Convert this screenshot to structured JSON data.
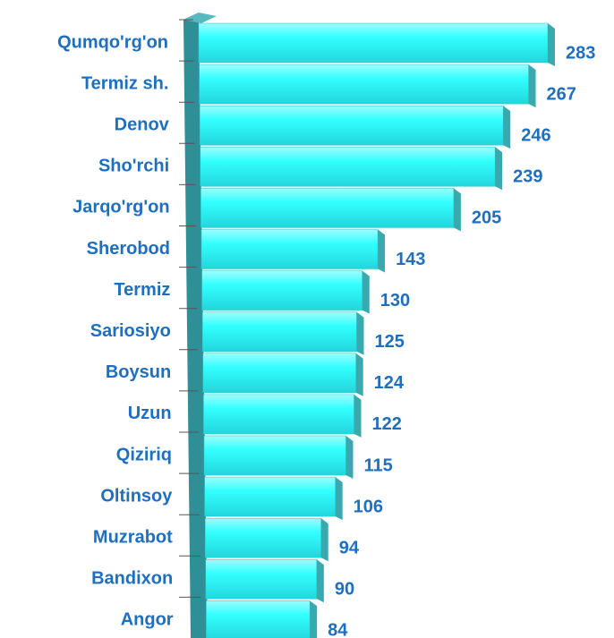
{
  "chart_data": {
    "type": "bar",
    "orientation": "horizontal",
    "categories": [
      "Qumqo'rg'on",
      "Termiz sh.",
      "Denov",
      "Sho'rchi",
      "Jarqo'rg'on",
      "Sherobod",
      "Termiz",
      "Sariosiyo",
      "Boysun",
      "Uzun",
      "Qiziriq",
      "Oltinsoy",
      "Muzrabot",
      "Bandixon",
      "Angor"
    ],
    "values": [
      283,
      267,
      246,
      239,
      205,
      143,
      130,
      125,
      124,
      122,
      115,
      106,
      94,
      90,
      84
    ],
    "color": "#33ffff"
  }
}
